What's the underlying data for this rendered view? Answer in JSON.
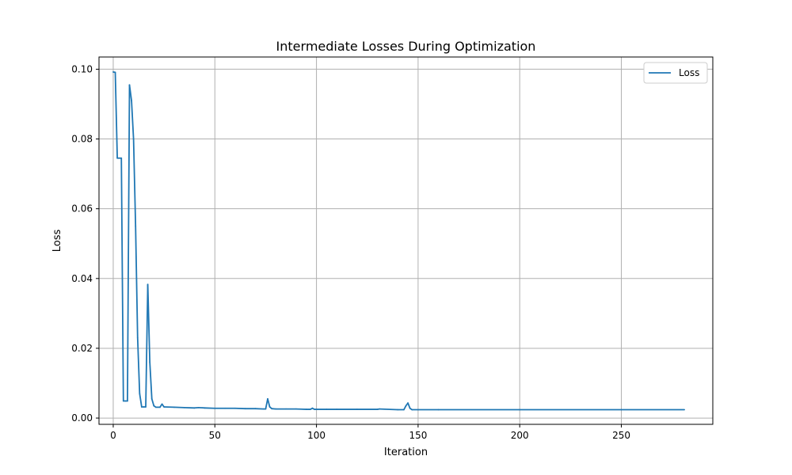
{
  "chart_data": {
    "type": "line",
    "title": "Intermediate Losses During Optimization",
    "xlabel": "Iteration",
    "ylabel": "Loss",
    "xlim": [
      -7,
      295
    ],
    "ylim": [
      -0.0018,
      0.1035
    ],
    "xticks": [
      0,
      50,
      100,
      150,
      200,
      250
    ],
    "xtick_labels": [
      "0",
      "50",
      "100",
      "150",
      "200",
      "250"
    ],
    "yticks": [
      0.0,
      0.02,
      0.04,
      0.06,
      0.08,
      0.1
    ],
    "ytick_labels": [
      "0.00",
      "0.02",
      "0.04",
      "0.06",
      "0.08",
      "0.10"
    ],
    "grid": true,
    "legend": "top-right",
    "series": [
      {
        "name": "Loss",
        "color": "#1f77b4",
        "x": [
          0,
          1,
          2,
          3,
          4,
          5,
          6,
          7,
          8,
          9,
          10,
          11,
          12,
          13,
          14,
          15,
          16,
          17,
          18,
          19,
          20,
          21,
          22,
          23,
          24,
          25,
          30,
          35,
          40,
          42,
          45,
          50,
          55,
          60,
          65,
          70,
          74,
          75,
          76,
          77,
          78,
          80,
          85,
          90,
          95,
          97,
          98,
          99,
          100,
          105,
          110,
          120,
          130,
          131,
          140,
          143,
          144,
          145,
          146,
          147,
          150,
          160,
          200,
          250,
          281
        ],
        "y": [
          0.0992,
          0.0991,
          0.0745,
          0.0745,
          0.0745,
          0.0049,
          0.0049,
          0.0049,
          0.0955,
          0.091,
          0.08,
          0.055,
          0.023,
          0.007,
          0.0032,
          0.0032,
          0.0032,
          0.0383,
          0.016,
          0.0055,
          0.0035,
          0.0031,
          0.0031,
          0.0031,
          0.004,
          0.0032,
          0.0031,
          0.003,
          0.0029,
          0.003,
          0.0029,
          0.0028,
          0.0028,
          0.0028,
          0.0027,
          0.0027,
          0.0026,
          0.0026,
          0.0055,
          0.0032,
          0.0027,
          0.0026,
          0.0026,
          0.0026,
          0.0025,
          0.0025,
          0.0028,
          0.0025,
          0.0025,
          0.0025,
          0.0025,
          0.0025,
          0.0025,
          0.0026,
          0.0024,
          0.0024,
          0.0035,
          0.0043,
          0.0028,
          0.0024,
          0.0024,
          0.0024,
          0.0024,
          0.0024,
          0.0024
        ]
      }
    ]
  }
}
